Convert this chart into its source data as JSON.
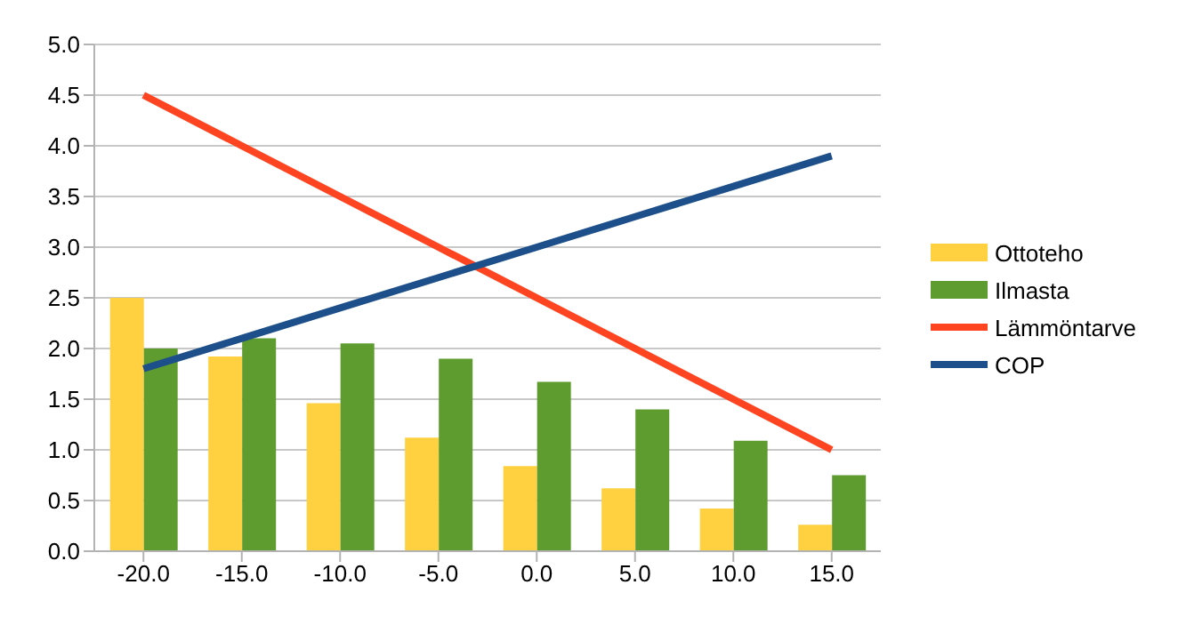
{
  "chart_data": {
    "type": "bar",
    "categories": [
      "-20.0",
      "-15.0",
      "-10.0",
      "-5.0",
      "0.0",
      "5.0",
      "10.0",
      "15.0"
    ],
    "series": [
      {
        "name": "Ottoteho",
        "color": "#ffd040",
        "values": [
          2.5,
          1.92,
          1.46,
          1.12,
          0.84,
          0.62,
          0.42,
          0.26
        ]
      },
      {
        "name": "Ilmasta",
        "color": "#5e9c2f",
        "values": [
          2.0,
          2.1,
          2.05,
          1.9,
          1.67,
          1.4,
          1.09,
          0.75
        ]
      },
      {
        "name": "Lämmöntarve",
        "type": "line",
        "color": "#ff4422",
        "values": [
          4.5,
          4.0,
          3.5,
          3.0,
          2.5,
          2.0,
          1.5,
          1.0
        ]
      },
      {
        "name": "COP",
        "type": "line",
        "color": "#1d4f8a",
        "values": [
          1.8,
          2.1,
          2.4,
          2.7,
          3.0,
          3.3,
          3.6,
          3.9
        ]
      }
    ],
    "ylim": [
      0,
      5
    ],
    "yticks": [
      {
        "value": 0,
        "label": "0.0"
      },
      {
        "value": 0.5,
        "label": "0.5"
      },
      {
        "value": 1,
        "label": "1.0"
      },
      {
        "value": 1.5,
        "label": "1.5"
      },
      {
        "value": 2,
        "label": "2.0"
      },
      {
        "value": 2.5,
        "label": "2.5"
      },
      {
        "value": 3,
        "label": "3.0"
      },
      {
        "value": 3.5,
        "label": "3.5"
      },
      {
        "value": 4,
        "label": "4.0"
      },
      {
        "value": 4.5,
        "label": "4.5"
      },
      {
        "value": 5,
        "label": "5.0"
      }
    ],
    "grid": "y",
    "legend": "right",
    "marker": "none"
  }
}
